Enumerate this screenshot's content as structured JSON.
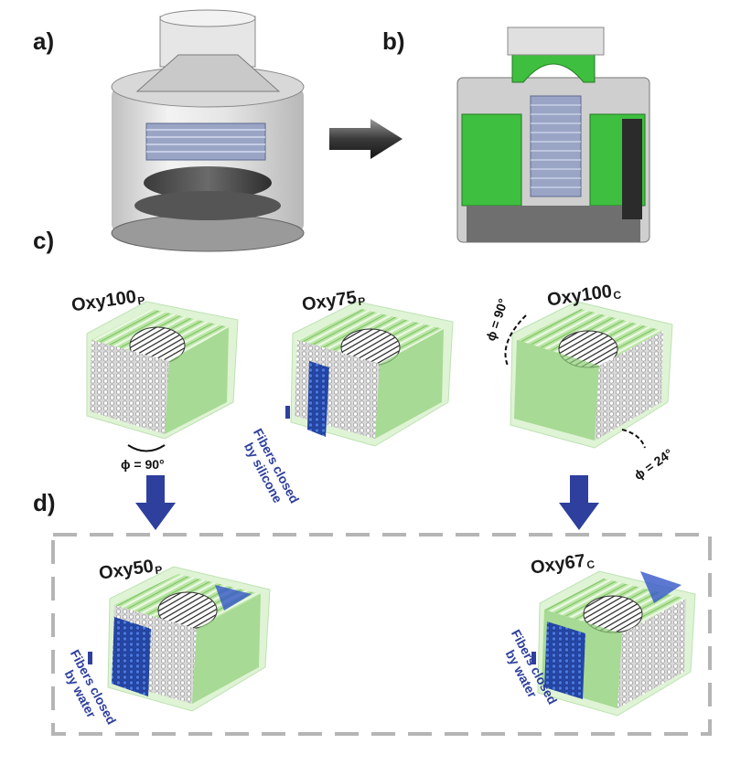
{
  "panels": {
    "a": "a)",
    "b": "b)",
    "c": "c)",
    "d": "d)"
  },
  "modules": {
    "oxy100p": {
      "name": "Oxy100",
      "sub": "P"
    },
    "oxy75p": {
      "name": "Oxy75",
      "sub": "P"
    },
    "oxy100c": {
      "name": "Oxy100",
      "sub": "C"
    },
    "oxy50p": {
      "name": "Oxy50",
      "sub": "P"
    },
    "oxy67c": {
      "name": "Oxy67",
      "sub": "C"
    }
  },
  "notes": {
    "silicone_line1": "Fibers closed",
    "silicone_line2": "by silicone",
    "water_left_line1": "Fibers closed",
    "water_left_line2": "by water",
    "water_right_line1": "Fibers closed",
    "water_right_line2": "by water"
  },
  "angles": {
    "oxy100p_phi": "ϕ = 90°",
    "oxy100c_phi_top": "ϕ = 90°",
    "oxy100c_phi_bottom": "ϕ = 24°"
  },
  "colors": {
    "fiber_green": "#b9e6a3",
    "housing_green": "#3fbf3f",
    "closed_blue": "#3556c8",
    "arrow_blue": "#2e3f9e",
    "dashed_frame": "#b5b5b5"
  }
}
